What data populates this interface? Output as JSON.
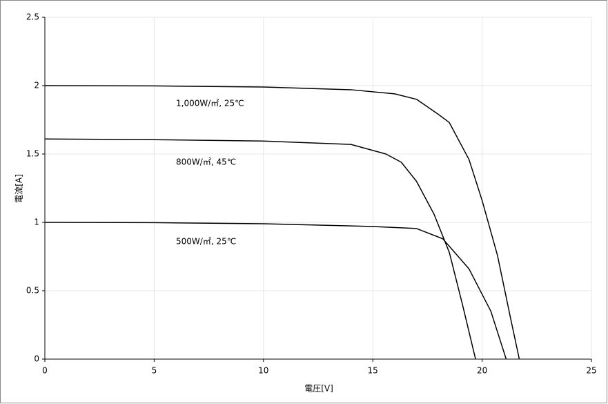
{
  "chart_data": {
    "type": "line",
    "x_label": "電圧[V]",
    "y_label": "電流[A]",
    "series": [
      {
        "name": "1,000W/㎡, 25℃",
        "color": "#000000",
        "x": [
          0,
          5,
          10,
          14,
          16,
          17,
          18,
          18.5,
          19.4,
          20,
          20.7,
          21.3,
          21.7
        ],
        "values": [
          2.0,
          1.998,
          1.99,
          1.97,
          1.94,
          1.9,
          1.79,
          1.73,
          1.46,
          1.16,
          0.76,
          0.3,
          0
        ]
      },
      {
        "name": "800W/㎡, 45℃",
        "color": "#000000",
        "x": [
          0,
          5,
          10,
          14,
          15.6,
          16.3,
          17,
          17.8,
          18.5,
          19.1,
          19.7
        ],
        "values": [
          1.61,
          1.605,
          1.595,
          1.57,
          1.5,
          1.44,
          1.3,
          1.06,
          0.78,
          0.4,
          0
        ]
      },
      {
        "name": "500W/㎡, 25℃",
        "color": "#000000",
        "x": [
          0,
          5,
          10,
          15,
          17,
          18.2,
          19.4,
          20.4,
          20.8,
          21.1
        ],
        "values": [
          1.0,
          0.998,
          0.99,
          0.97,
          0.955,
          0.88,
          0.66,
          0.35,
          0.15,
          0
        ]
      }
    ],
    "xlim": [
      0,
      25
    ],
    "xticks": [
      0,
      5,
      10,
      15,
      20,
      25
    ],
    "ylim": [
      0,
      2.5
    ],
    "yticks": [
      0,
      0.5,
      1,
      1.5,
      2,
      2.5
    ],
    "grid": true
  }
}
